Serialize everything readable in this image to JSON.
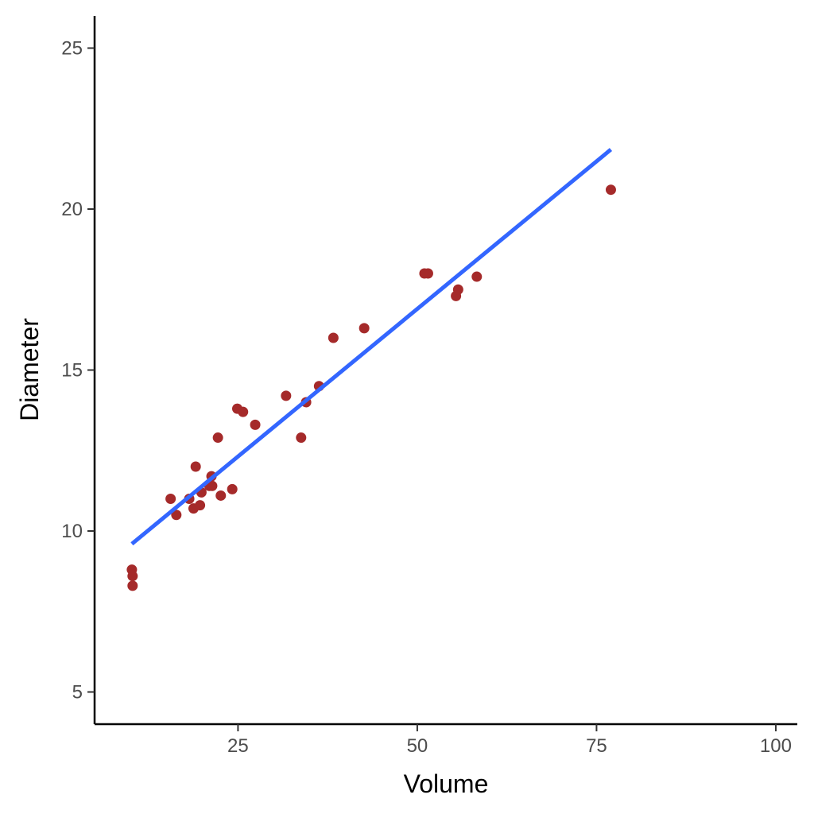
{
  "chart_data": {
    "type": "scatter",
    "title": "",
    "xlabel": "Volume",
    "ylabel": "Diameter",
    "xlim": [
      5,
      103
    ],
    "ylim": [
      4,
      26
    ],
    "x_ticks": [
      25,
      50,
      75,
      100
    ],
    "y_ticks": [
      5,
      10,
      15,
      20,
      25
    ],
    "grid": false,
    "legend": "none",
    "point_color": "#A52A2A",
    "line_color": "#3366FF",
    "points": [
      {
        "x": 10.3,
        "y": 8.3
      },
      {
        "x": 10.3,
        "y": 8.6
      },
      {
        "x": 10.2,
        "y": 8.8
      },
      {
        "x": 16.4,
        "y": 10.5
      },
      {
        "x": 18.8,
        "y": 10.7
      },
      {
        "x": 19.7,
        "y": 10.8
      },
      {
        "x": 15.6,
        "y": 11.0
      },
      {
        "x": 18.2,
        "y": 11.0
      },
      {
        "x": 22.6,
        "y": 11.1
      },
      {
        "x": 19.9,
        "y": 11.2
      },
      {
        "x": 24.2,
        "y": 11.3
      },
      {
        "x": 21.0,
        "y": 11.4
      },
      {
        "x": 21.4,
        "y": 11.4
      },
      {
        "x": 21.3,
        "y": 11.7
      },
      {
        "x": 19.1,
        "y": 12.0
      },
      {
        "x": 22.2,
        "y": 12.9
      },
      {
        "x": 33.8,
        "y": 12.9
      },
      {
        "x": 27.4,
        "y": 13.3
      },
      {
        "x": 25.7,
        "y": 13.7
      },
      {
        "x": 24.9,
        "y": 13.8
      },
      {
        "x": 34.5,
        "y": 14.0
      },
      {
        "x": 31.7,
        "y": 14.2
      },
      {
        "x": 36.3,
        "y": 14.5
      },
      {
        "x": 38.3,
        "y": 16.0
      },
      {
        "x": 42.6,
        "y": 16.3
      },
      {
        "x": 55.4,
        "y": 17.3
      },
      {
        "x": 55.7,
        "y": 17.5
      },
      {
        "x": 58.3,
        "y": 17.9
      },
      {
        "x": 51.5,
        "y": 18.0
      },
      {
        "x": 51.0,
        "y": 18.0
      },
      {
        "x": 77.0,
        "y": 20.6
      }
    ],
    "fit_line": {
      "x": [
        10.2,
        77.0
      ],
      "y": [
        9.6,
        21.85
      ]
    }
  }
}
